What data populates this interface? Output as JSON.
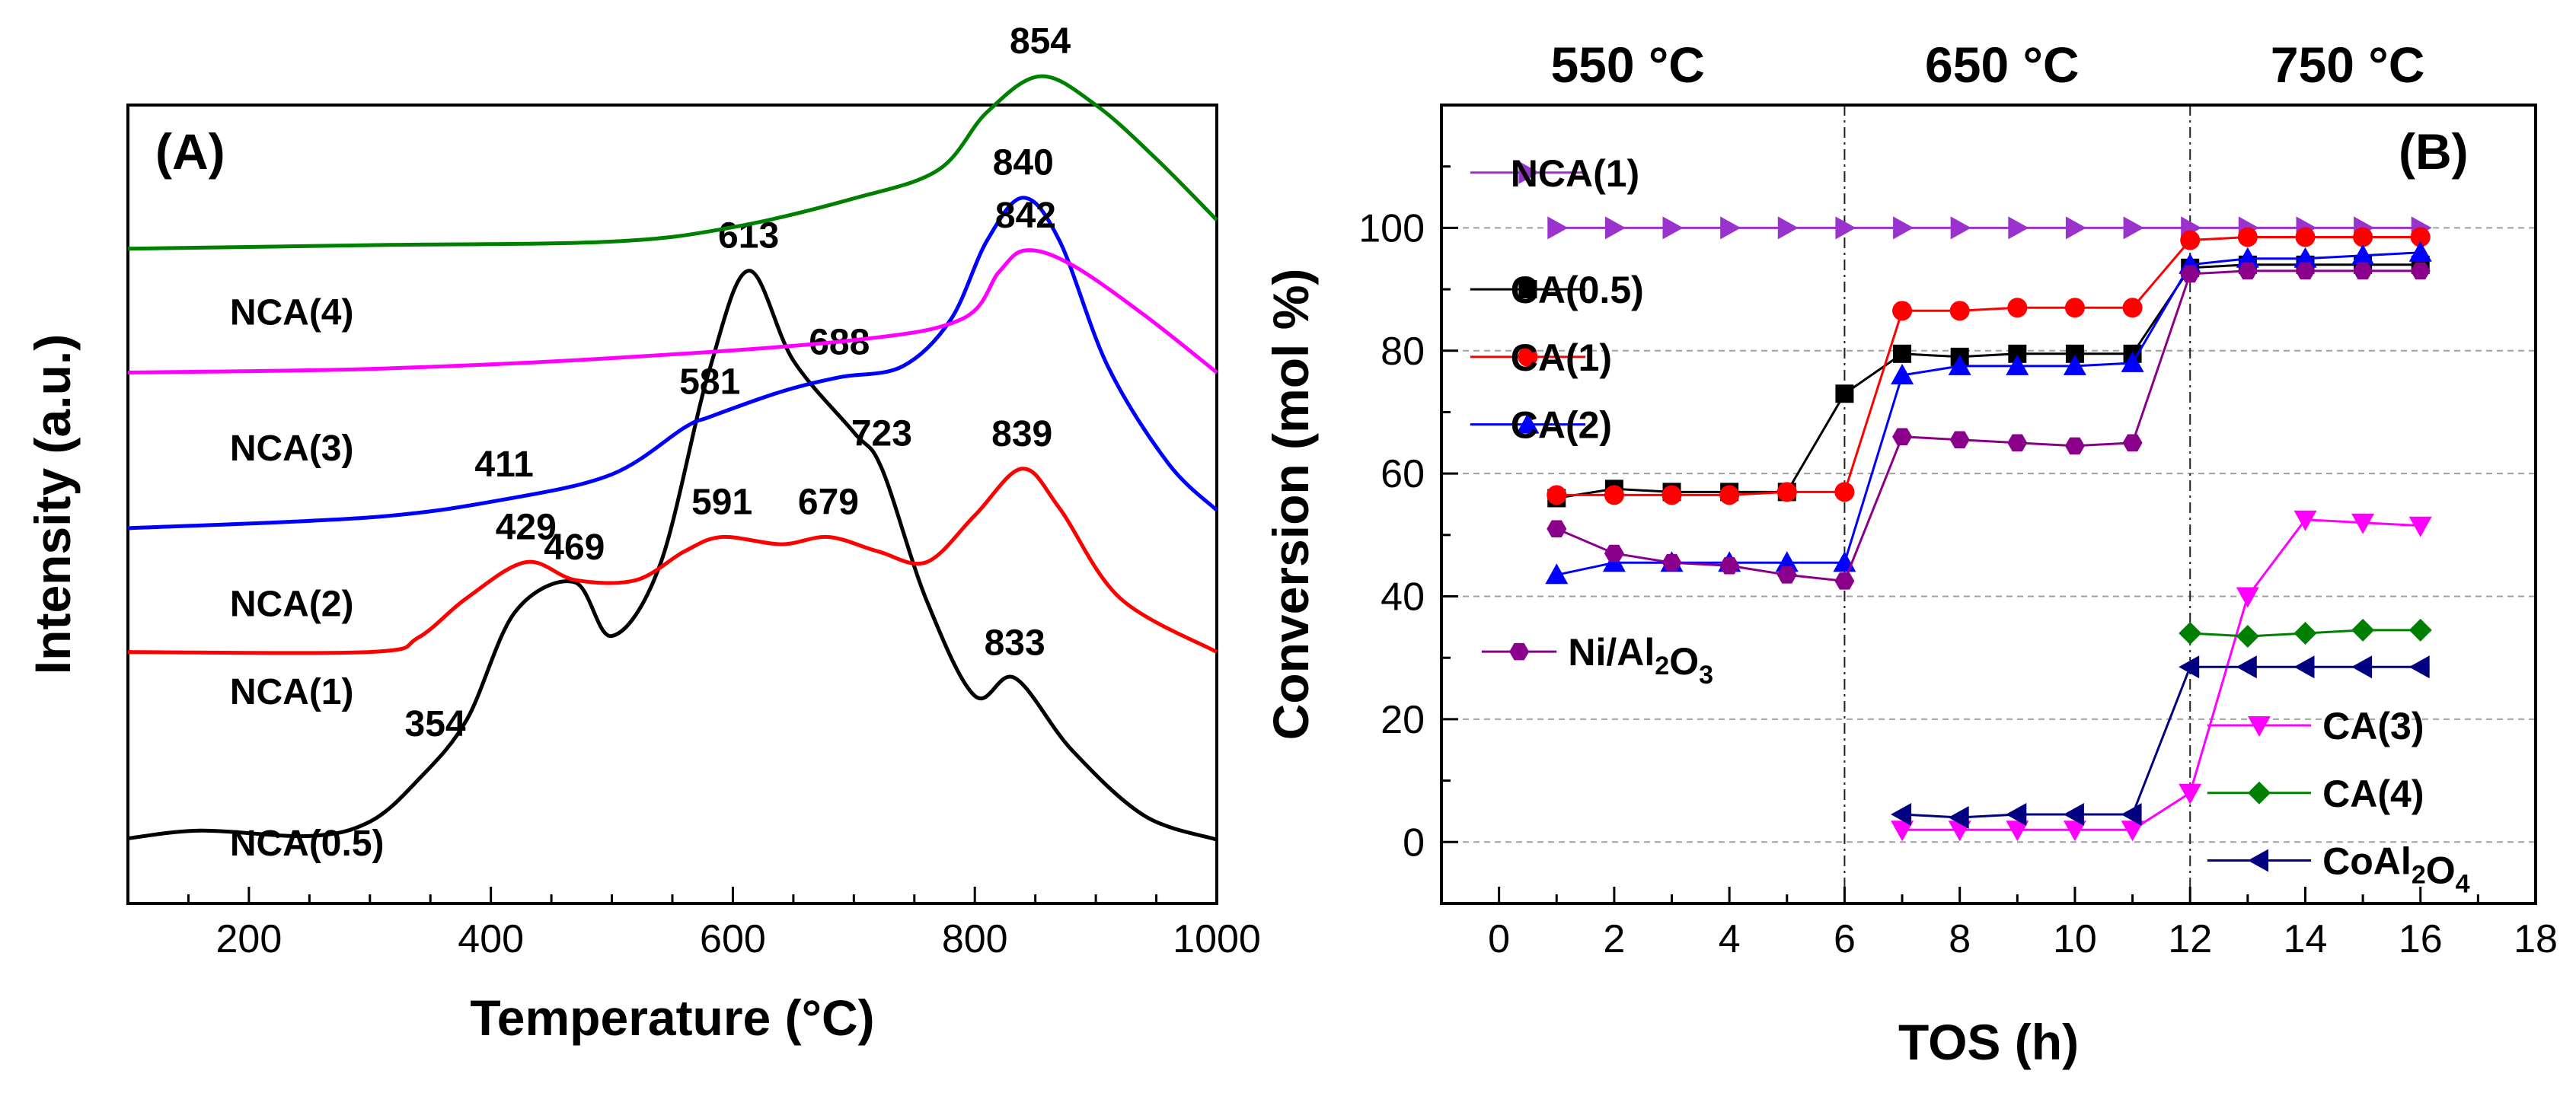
{
  "chart_data": [
    {
      "type": "line",
      "panel": "(A)",
      "xlabel": "Temperature (°C)",
      "ylabel": "Intensity (a.u.)",
      "xlim": [
        100,
        1000
      ],
      "xticks": [
        200,
        400,
        600,
        800,
        1000
      ],
      "yticks_shown": false,
      "series": [
        {
          "name": "NCA(0.5)",
          "color": "#000000",
          "baseline": 0.08,
          "ampl": 0.0075,
          "points": [
            [
              100,
              0.2
            ],
            [
              160,
              1.5
            ],
            [
              250,
              0.6
            ],
            [
              300,
              3
            ],
            [
              340,
              10
            ],
            [
              380,
              20
            ],
            [
              420,
              38
            ],
            [
              469,
              43
            ],
            [
              500,
              34
            ],
            [
              540,
              46
            ],
            [
              580,
              78
            ],
            [
              613,
              95
            ],
            [
              650,
              80
            ],
            [
              700,
              68
            ],
            [
              723,
              62
            ],
            [
              760,
              40
            ],
            [
              800,
              24
            ],
            [
              833,
              27
            ],
            [
              880,
              15
            ],
            [
              940,
              4
            ],
            [
              1000,
              0
            ]
          ],
          "peak_labels": [
            [
              354,
              "354"
            ],
            [
              469,
              "469"
            ],
            [
              613,
              "613"
            ],
            [
              723,
              "723"
            ],
            [
              833,
              "833"
            ]
          ]
        },
        {
          "name": "NCA(1)",
          "color": "#ff0000",
          "baseline": 0.315,
          "ampl": 0.0045,
          "points": [
            [
              100,
              0
            ],
            [
              300,
              0
            ],
            [
              340,
              4
            ],
            [
              380,
              15
            ],
            [
              429,
              25
            ],
            [
              470,
              20
            ],
            [
              520,
              20
            ],
            [
              560,
              28
            ],
            [
              591,
              32
            ],
            [
              640,
              30
            ],
            [
              679,
              32
            ],
            [
              720,
              28
            ],
            [
              760,
              25
            ],
            [
              800,
              38
            ],
            [
              839,
              51
            ],
            [
              870,
              40
            ],
            [
              920,
              15
            ],
            [
              1000,
              0
            ]
          ],
          "peak_labels": [
            [
              429,
              "429"
            ],
            [
              591,
              "591"
            ],
            [
              679,
              "679"
            ],
            [
              839,
              "839"
            ]
          ]
        },
        {
          "name": "NCA(2)",
          "color": "#0000ff",
          "baseline": 0.47,
          "ampl": 0.0045,
          "points": [
            [
              100,
              0
            ],
            [
              300,
              3
            ],
            [
              411,
              8
            ],
            [
              500,
              15
            ],
            [
              560,
              28
            ],
            [
              581,
              31
            ],
            [
              640,
              38
            ],
            [
              688,
              42
            ],
            [
              740,
              45
            ],
            [
              780,
              58
            ],
            [
              810,
              80
            ],
            [
              840,
              92
            ],
            [
              870,
              80
            ],
            [
              910,
              45
            ],
            [
              960,
              18
            ],
            [
              1000,
              5
            ]
          ],
          "peak_labels": [
            [
              411,
              "411"
            ],
            [
              581,
              "581"
            ],
            [
              688,
              "688"
            ],
            [
              840,
              "840"
            ]
          ]
        },
        {
          "name": "NCA(3)",
          "color": "#ff00ff",
          "baseline": 0.665,
          "ampl": 0.0045,
          "points": [
            [
              100,
              0
            ],
            [
              300,
              1
            ],
            [
              500,
              4
            ],
            [
              700,
              9
            ],
            [
              790,
              15
            ],
            [
              820,
              28
            ],
            [
              842,
              34
            ],
            [
              880,
              30
            ],
            [
              940,
              16
            ],
            [
              1000,
              0
            ]
          ],
          "peak_labels": [
            [
              842,
              "842"
            ]
          ]
        },
        {
          "name": "NCA(4)",
          "color": "#008000",
          "baseline": 0.82,
          "ampl": 0.0045,
          "points": [
            [
              100,
              0
            ],
            [
              300,
              1
            ],
            [
              500,
              2
            ],
            [
              600,
              6
            ],
            [
              700,
              14
            ],
            [
              770,
              22
            ],
            [
              810,
              38
            ],
            [
              854,
              48
            ],
            [
              900,
              40
            ],
            [
              950,
              25
            ],
            [
              1000,
              8
            ]
          ],
          "peak_labels": [
            [
              854,
              "854"
            ]
          ]
        }
      ],
      "series_labels": [
        {
          "text": "NCA(0.5)",
          "at": [
            115,
            0.06
          ]
        },
        {
          "text": "NCA(1)",
          "at": [
            115,
            0.25
          ]
        },
        {
          "text": "NCA(2)",
          "at": [
            115,
            0.36
          ]
        },
        {
          "text": "NCA(3)",
          "at": [
            115,
            0.555
          ]
        },
        {
          "text": "NCA(4)",
          "at": [
            115,
            0.725
          ]
        }
      ]
    },
    {
      "type": "line",
      "panel": "(B)",
      "xlabel": "TOS (h)",
      "ylabel": "Conversion (mol %)",
      "xlim": [
        -1,
        18
      ],
      "ylim": [
        -10,
        120
      ],
      "xticks": [
        0,
        2,
        4,
        6,
        8,
        10,
        12,
        14,
        16,
        18
      ],
      "yticks": [
        0,
        20,
        40,
        60,
        80,
        100
      ],
      "hgrid": [
        0,
        20,
        40,
        60,
        80,
        100
      ],
      "vlines": [
        6,
        12
      ],
      "zones": [
        {
          "label": "550 °C",
          "x": 2.5
        },
        {
          "label": "650 °C",
          "x": 9
        },
        {
          "label": "750 °C",
          "x": 15
        }
      ],
      "series": [
        {
          "name": "NCA(1)",
          "color": "#9a32cd",
          "marker": "tri-right",
          "x": [
            1,
            2,
            3,
            4,
            5,
            6,
            7,
            8,
            9,
            10,
            11,
            12,
            13,
            14,
            15,
            16
          ],
          "y": [
            100,
            100,
            100,
            100,
            100,
            100,
            100,
            100,
            100,
            100,
            100,
            100,
            100,
            100,
            100,
            100
          ]
        },
        {
          "name": "CA(0.5)",
          "color": "#000000",
          "marker": "square",
          "x": [
            1,
            2,
            3,
            4,
            5,
            6,
            7,
            8,
            9,
            10,
            11,
            12,
            13,
            14,
            15,
            16
          ],
          "y": [
            56,
            57.5,
            57,
            57,
            57,
            73,
            79.5,
            79,
            79.5,
            79.5,
            79.5,
            93.5,
            94,
            94,
            94,
            94
          ]
        },
        {
          "name": "CA(1)",
          "color": "#ff0000",
          "marker": "circle",
          "x": [
            1,
            2,
            3,
            4,
            5,
            6,
            7,
            8,
            9,
            10,
            11,
            12,
            13,
            14,
            15,
            16
          ],
          "y": [
            56.5,
            56.5,
            56.5,
            56.5,
            57,
            57,
            86.5,
            86.5,
            87,
            87,
            87,
            98,
            98.5,
            98.5,
            98.5,
            98.5
          ]
        },
        {
          "name": "CA(2)",
          "color": "#0000ff",
          "marker": "tri-up",
          "x": [
            1,
            2,
            3,
            4,
            5,
            6,
            7,
            8,
            9,
            10,
            11,
            12,
            13,
            14,
            15,
            16
          ],
          "y": [
            43.5,
            45.5,
            45.5,
            45.5,
            45.5,
            45.5,
            76,
            77.5,
            77.5,
            77.5,
            78,
            94,
            95,
            95,
            95.5,
            96
          ]
        },
        {
          "name": "Ni/Al2O3",
          "color": "#8b008b",
          "marker": "hexagon",
          "x": [
            1,
            2,
            3,
            4,
            5,
            6,
            7,
            8,
            9,
            10,
            11,
            12,
            13,
            14,
            15,
            16
          ],
          "y": [
            51,
            47,
            45.5,
            45,
            43.5,
            42.5,
            66,
            65.5,
            65,
            64.5,
            65,
            92.5,
            93,
            93,
            93,
            93
          ]
        },
        {
          "name": "CA(3)",
          "color": "#ff00ff",
          "marker": "tri-down",
          "x": [
            7,
            8,
            9,
            10,
            11,
            12,
            13,
            14,
            15,
            16
          ],
          "y": [
            2,
            2,
            2,
            2,
            2,
            8,
            40,
            52.5,
            52,
            51.5
          ]
        },
        {
          "name": "CA(4)",
          "color": "#008000",
          "marker": "diamond",
          "x": [
            12,
            13,
            14,
            15,
            16
          ],
          "y": [
            34,
            33.5,
            34,
            34.5,
            34.5
          ]
        },
        {
          "name": "CoAl2O4",
          "color": "#000080",
          "marker": "tri-left",
          "x": [
            7,
            8,
            9,
            10,
            11,
            12,
            13,
            14,
            15,
            16
          ],
          "y": [
            4.5,
            4,
            4.5,
            4.5,
            4.5,
            28.5,
            28.5,
            28.5,
            28.5,
            28.5
          ]
        }
      ],
      "legend": [
        {
          "text": "NCA(1)",
          "series": 0,
          "at": [
            0.2,
            109
          ],
          "line": [
            -0.5,
            1.5
          ]
        },
        {
          "text": "CA(0.5)",
          "series": 1,
          "at": [
            0.2,
            90
          ],
          "line": [
            -0.5,
            1.5
          ]
        },
        {
          "text": "CA(1)",
          "series": 2,
          "at": [
            0.2,
            79
          ],
          "line": [
            -0.5,
            1.5
          ]
        },
        {
          "text": "CA(2)",
          "series": 3,
          "at": [
            0.2,
            68
          ],
          "line": [
            -0.5,
            1.5
          ]
        },
        {
          "text": "Ni/Al2O3",
          "series": 4,
          "at": [
            1.2,
            31
          ],
          "line": [
            -0.3,
            1.0
          ],
          "subscript": true
        },
        {
          "text": "CA(3)",
          "series": 5,
          "at": [
            14.3,
            19
          ],
          "line": [
            12.3,
            14.1
          ]
        },
        {
          "text": "CA(4)",
          "series": 6,
          "at": [
            14.3,
            8
          ],
          "line": [
            12.3,
            14.1
          ]
        },
        {
          "text": "CoAl2O4",
          "series": 7,
          "at": [
            14.3,
            -3
          ],
          "line": [
            12.3,
            14.1
          ],
          "subscript": true
        }
      ]
    }
  ]
}
